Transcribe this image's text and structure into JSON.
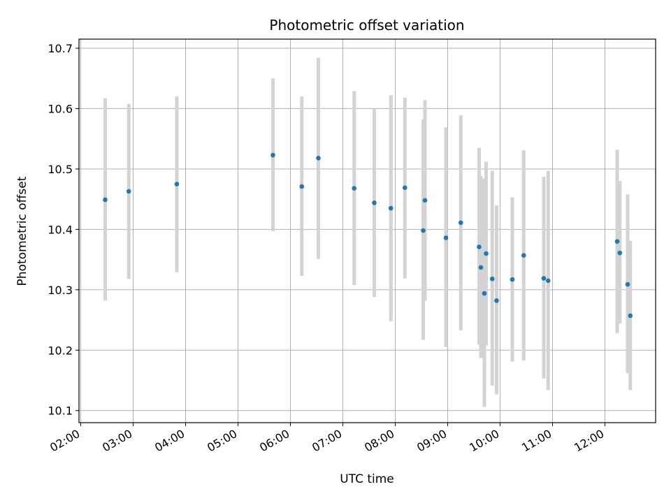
{
  "chart_data": {
    "type": "scatter",
    "title": "Photometric offset variation",
    "xlabel": "UTC time",
    "ylabel": "Photometric offset",
    "x_axis_type": "time",
    "xlim": [
      "01:58",
      "12:58"
    ],
    "ylim": [
      10.08,
      10.715
    ],
    "grid": true,
    "x_ticks": [
      "02:00",
      "03:00",
      "04:00",
      "05:00",
      "06:00",
      "07:00",
      "08:00",
      "09:00",
      "10:00",
      "11:00",
      "12:00"
    ],
    "y_ticks": [
      "10.1",
      "10.2",
      "10.3",
      "10.4",
      "10.5",
      "10.6",
      "10.7"
    ],
    "point_color": "#1f77b4",
    "errorbar_color": "#d3d3d3",
    "points": [
      {
        "x": "02:28",
        "y": 10.449,
        "low": 10.282,
        "high": 10.617
      },
      {
        "x": "02:55",
        "y": 10.463,
        "low": 10.318,
        "high": 10.608
      },
      {
        "x": "03:50",
        "y": 10.475,
        "low": 10.329,
        "high": 10.62
      },
      {
        "x": "05:40",
        "y": 10.523,
        "low": 10.397,
        "high": 10.65
      },
      {
        "x": "06:13",
        "y": 10.471,
        "low": 10.323,
        "high": 10.62
      },
      {
        "x": "06:32",
        "y": 10.518,
        "low": 10.351,
        "high": 10.684
      },
      {
        "x": "07:13",
        "y": 10.468,
        "low": 10.308,
        "high": 10.629
      },
      {
        "x": "07:36",
        "y": 10.444,
        "low": 10.288,
        "high": 10.6
      },
      {
        "x": "07:55",
        "y": 10.435,
        "low": 10.248,
        "high": 10.622
      },
      {
        "x": "08:11",
        "y": 10.469,
        "low": 10.319,
        "high": 10.618
      },
      {
        "x": "08:32",
        "y": 10.398,
        "low": 10.217,
        "high": 10.582
      },
      {
        "x": "08:34",
        "y": 10.448,
        "low": 10.282,
        "high": 10.614
      },
      {
        "x": "08:58",
        "y": 10.386,
        "low": 10.205,
        "high": 10.569
      },
      {
        "x": "09:15",
        "y": 10.411,
        "low": 10.233,
        "high": 10.589
      },
      {
        "x": "09:36",
        "y": 10.371,
        "low": 10.209,
        "high": 10.535
      },
      {
        "x": "09:38",
        "y": 10.337,
        "low": 10.187,
        "high": 10.488
      },
      {
        "x": "09:42",
        "y": 10.294,
        "low": 10.106,
        "high": 10.484
      },
      {
        "x": "09:44",
        "y": 10.36,
        "low": 10.208,
        "high": 10.512
      },
      {
        "x": "09:51",
        "y": 10.318,
        "low": 10.141,
        "high": 10.497
      },
      {
        "x": "09:56",
        "y": 10.282,
        "low": 10.127,
        "high": 10.44
      },
      {
        "x": "10:14",
        "y": 10.317,
        "low": 10.181,
        "high": 10.453
      },
      {
        "x": "10:27",
        "y": 10.357,
        "low": 10.183,
        "high": 10.531
      },
      {
        "x": "10:50",
        "y": 10.319,
        "low": 10.153,
        "high": 10.487
      },
      {
        "x": "10:55",
        "y": 10.315,
        "low": 10.134,
        "high": 10.497
      },
      {
        "x": "12:14",
        "y": 10.38,
        "low": 10.228,
        "high": 10.532
      },
      {
        "x": "12:17",
        "y": 10.361,
        "low": 10.244,
        "high": 10.48
      },
      {
        "x": "12:26",
        "y": 10.309,
        "low": 10.162,
        "high": 10.458
      },
      {
        "x": "12:29",
        "y": 10.257,
        "low": 10.134,
        "high": 10.381
      }
    ]
  }
}
